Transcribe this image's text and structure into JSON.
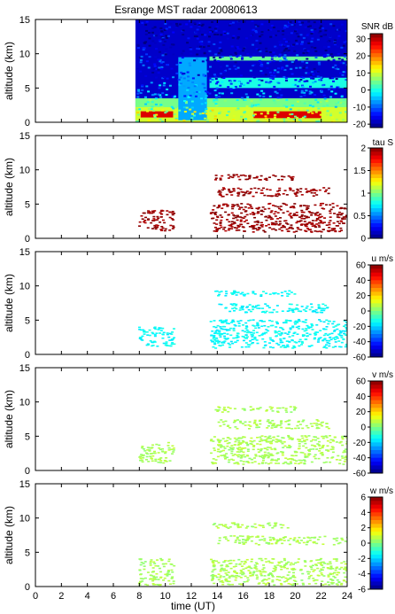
{
  "chart_data": {
    "type": "heatmap",
    "title": "Esrange MST radar 20080613",
    "xlabel": "time (UT)",
    "x_ticks": [
      "0",
      "2",
      "4",
      "6",
      "8",
      "10",
      "12",
      "14",
      "16",
      "18",
      "20",
      "22",
      "24"
    ],
    "xlim": [
      0,
      24
    ],
    "panels": [
      {
        "id": "snr",
        "ylabel": "altitude (km)",
        "ylim": [
          0,
          15
        ],
        "y_ticks": [
          "0",
          "5",
          "10",
          "15"
        ],
        "colorbar_label": "SNR dB",
        "colorbar_ticks": [
          "30",
          "20",
          "10",
          "0",
          "-10",
          "-20"
        ],
        "clim": [
          -22,
          33
        ],
        "colormap": "jet",
        "observation_start": 7.7,
        "regions": [
          {
            "t": [
              7.7,
              24
            ],
            "z": [
              0,
              15
            ],
            "value": -18
          },
          {
            "t": [
              7.7,
              24
            ],
            "z": [
              0,
              3.5
            ],
            "value": 5
          },
          {
            "t": [
              7.7,
              24
            ],
            "z": [
              0,
              2.2
            ],
            "value": 10
          },
          {
            "t": [
              8.1,
              10.6
            ],
            "z": [
              0.7,
              1.6
            ],
            "value": 28
          },
          {
            "t": [
              16.8,
              22.0
            ],
            "z": [
              0.6,
              1.6
            ],
            "value": 28
          },
          {
            "t": [
              11.0,
              13.2
            ],
            "z": [
              0.3,
              9.5
            ],
            "value": -6
          },
          {
            "t": [
              13.4,
              24
            ],
            "z": [
              5.0,
              6.5
            ],
            "value": 0
          },
          {
            "t": [
              13.4,
              24
            ],
            "z": [
              9.0,
              9.6
            ],
            "value": 4
          }
        ]
      },
      {
        "id": "tau",
        "ylabel": "altitude (km)",
        "ylim": [
          0,
          15
        ],
        "y_ticks": [
          "0",
          "5",
          "10",
          "15"
        ],
        "colorbar_label": "tau S",
        "colorbar_ticks": [
          "2",
          "1.5",
          "1",
          "0.5",
          "0"
        ],
        "clim": [
          0,
          2
        ],
        "colormap": "jet",
        "dominant_value": 1.95,
        "echo_regions": [
          {
            "t": [
              7.9,
              10.6
            ],
            "z": [
              1.2,
              4.2
            ]
          },
          {
            "t": [
              13.4,
              24.0
            ],
            "z": [
              1.0,
              5.2
            ]
          },
          {
            "t": [
              14.0,
              22.5
            ],
            "z": [
              6.2,
              7.5
            ]
          },
          {
            "t": [
              13.6,
              20.0
            ],
            "z": [
              8.6,
              9.4
            ]
          }
        ]
      },
      {
        "id": "u",
        "ylabel": "altitude (km)",
        "ylim": [
          0,
          15
        ],
        "y_ticks": [
          "0",
          "5",
          "10",
          "15"
        ],
        "colorbar_label": "u m/s",
        "colorbar_ticks": [
          "60",
          "40",
          "20",
          "0",
          "-20",
          "-40",
          "-60"
        ],
        "clim": [
          -60,
          60
        ],
        "colormap": "jet",
        "dominant_value": -15,
        "echo_regions": [
          {
            "t": [
              7.9,
              10.6
            ],
            "z": [
              1.2,
              4.2
            ]
          },
          {
            "t": [
              13.4,
              24.0
            ],
            "z": [
              1.0,
              5.2
            ]
          },
          {
            "t": [
              14.0,
              22.5
            ],
            "z": [
              6.2,
              7.5
            ]
          },
          {
            "t": [
              13.6,
              20.0
            ],
            "z": [
              8.6,
              9.4
            ]
          }
        ]
      },
      {
        "id": "v",
        "ylabel": "altitude (km)",
        "ylim": [
          0,
          15
        ],
        "y_ticks": [
          "0",
          "5",
          "10",
          "15"
        ],
        "colorbar_label": "v m/s",
        "colorbar_ticks": [
          "60",
          "40",
          "20",
          "0",
          "-20",
          "-40",
          "-60"
        ],
        "clim": [
          -60,
          60
        ],
        "colormap": "jet",
        "dominant_value": 5,
        "echo_regions": [
          {
            "t": [
              7.9,
              10.6
            ],
            "z": [
              1.2,
              4.2
            ]
          },
          {
            "t": [
              13.4,
              24.0
            ],
            "z": [
              1.0,
              5.2
            ]
          },
          {
            "t": [
              14.0,
              22.5
            ],
            "z": [
              6.2,
              7.5
            ]
          },
          {
            "t": [
              13.6,
              20.0
            ],
            "z": [
              8.6,
              9.4
            ]
          }
        ]
      },
      {
        "id": "w",
        "ylabel": "altitude (km)",
        "ylim": [
          0,
          15
        ],
        "y_ticks": [
          "0",
          "5",
          "10",
          "15"
        ],
        "colorbar_label": "w m/s",
        "colorbar_ticks": [
          "6",
          "4",
          "2",
          "0",
          "-2",
          "-4",
          "-6"
        ],
        "clim": [
          -6,
          6
        ],
        "colormap": "jet",
        "dominant_value": 0.5,
        "echo_regions": [
          {
            "t": [
              7.9,
              10.6
            ],
            "z": [
              0.3,
              4.2
            ]
          },
          {
            "t": [
              13.4,
              24.0
            ],
            "z": [
              0.3,
              4.2
            ]
          },
          {
            "t": [
              14.0,
              24.0
            ],
            "z": [
              6.2,
              7.5
            ]
          },
          {
            "t": [
              13.6,
              20.0
            ],
            "z": [
              8.6,
              9.4
            ]
          }
        ]
      }
    ]
  }
}
